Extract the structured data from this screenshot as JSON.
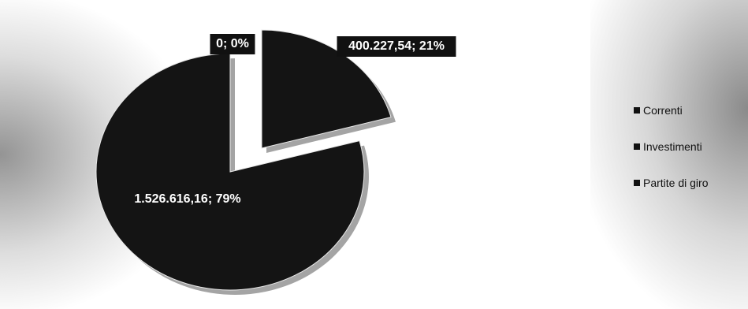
{
  "chart_data": {
    "type": "pie",
    "title": "",
    "exploded": true,
    "slices": [
      {
        "name": "Correnti",
        "value": 1526616.16,
        "percent": 79,
        "label": "1.526.616,16; 79%",
        "color": "#141414"
      },
      {
        "name": "Investimenti",
        "value": 400227.54,
        "percent": 21,
        "label": "400.227,54; 21%",
        "color": "#141414"
      },
      {
        "name": "Partite di giro",
        "value": 0,
        "percent": 0,
        "label": "0; 0%",
        "color": "#141414"
      }
    ],
    "legend": {
      "position": "right",
      "items": [
        "Correnti",
        "Investimenti",
        "Partite di giro"
      ]
    },
    "colors": {
      "slice": "#141414",
      "label_text": "#ffffff",
      "background": "#ffffff"
    }
  }
}
